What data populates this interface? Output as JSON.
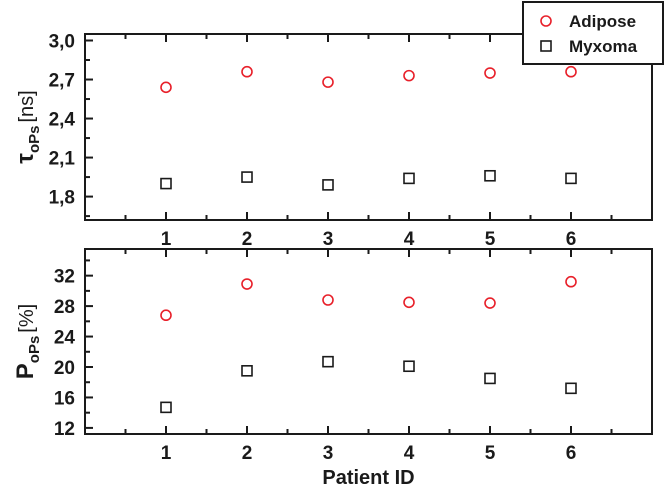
{
  "chart_data": [
    {
      "type": "scatter",
      "x": [
        1,
        2,
        3,
        4,
        5,
        6
      ],
      "xlim": [
        0,
        7
      ],
      "ylim": [
        1.62,
        3.05
      ],
      "yticks": [
        "1,8",
        "2,1",
        "2,4",
        "2,7",
        "3,0"
      ],
      "ytick_values": [
        1.8,
        2.1,
        2.4,
        2.7,
        3.0
      ],
      "ylabel_main": "τ",
      "ylabel_sub": "oPs",
      "ylabel_unit": "[ns]",
      "xlabel": "",
      "grid": false,
      "series": [
        {
          "name": "Adipose",
          "marker": "circle",
          "color": "#e8202a",
          "values": [
            2.64,
            2.76,
            2.68,
            2.73,
            2.75,
            2.76
          ]
        },
        {
          "name": "Myxoma",
          "marker": "square",
          "color": "#1a1a1a",
          "values": [
            1.9,
            1.95,
            1.89,
            1.94,
            1.96,
            1.94
          ]
        }
      ]
    },
    {
      "type": "scatter",
      "x": [
        1,
        2,
        3,
        4,
        5,
        6
      ],
      "xlim": [
        0,
        7
      ],
      "ylim": [
        11.2,
        35.5
      ],
      "yticks": [
        "12",
        "16",
        "20",
        "24",
        "28",
        "32"
      ],
      "ytick_values": [
        12,
        16,
        20,
        24,
        28,
        32
      ],
      "ylabel_main": "P",
      "ylabel_sub": "oPs",
      "ylabel_unit": "[%]",
      "xlabel": "Patient ID",
      "grid": false,
      "series": [
        {
          "name": "Adipose",
          "marker": "circle",
          "color": "#e8202a",
          "values": [
            26.8,
            30.9,
            28.8,
            28.5,
            28.4,
            31.2
          ]
        },
        {
          "name": "Myxoma",
          "marker": "square",
          "color": "#1a1a1a",
          "values": [
            14.7,
            19.5,
            20.7,
            20.1,
            18.5,
            17.2
          ]
        }
      ]
    }
  ],
  "x_tick_labels": [
    "1",
    "2",
    "3",
    "4",
    "5",
    "6"
  ],
  "legend": {
    "placement": "top-right",
    "entries": [
      {
        "label": "Adipose",
        "marker": "circle",
        "color": "#e8202a"
      },
      {
        "label": "Myxoma",
        "marker": "square",
        "color": "#1a1a1a"
      }
    ]
  }
}
